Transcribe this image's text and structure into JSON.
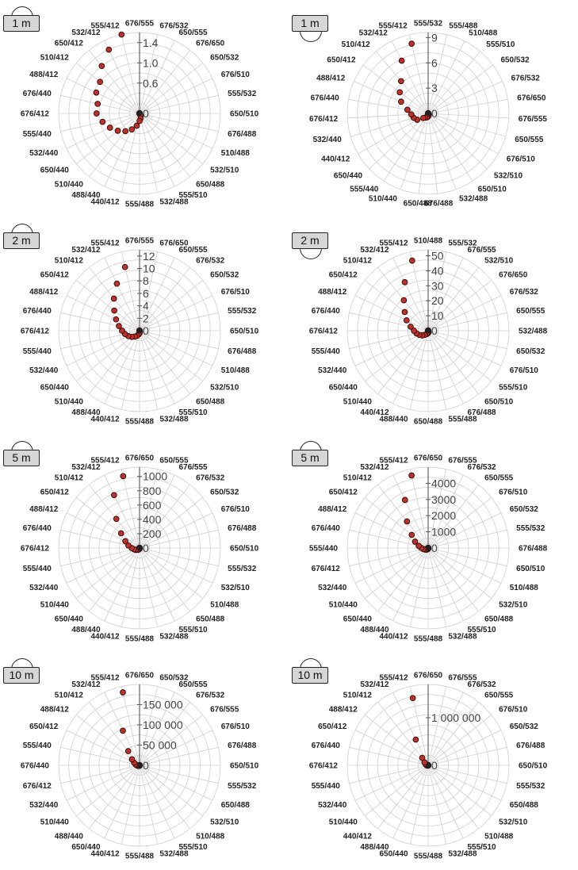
{
  "chart_data": [
    {
      "type": "radar",
      "badge": "1 m",
      "ticks": [
        "1.4",
        "1.0",
        "0.6",
        "0"
      ],
      "tick_values": [
        1.4,
        1.0,
        0.6,
        0
      ],
      "rmax": 1.6,
      "categories": [
        "676/555",
        "676/532",
        "650/555",
        "676/650",
        "650/532",
        "676/510",
        "555/532",
        "650/510",
        "676/488",
        "510/488",
        "532/510",
        "650/488",
        "555/510",
        "532/488",
        "555/488",
        "440/412",
        "488/440",
        "510/440",
        "650/440",
        "532/440",
        "555/440",
        "676/412",
        "676/440",
        "488/412",
        "510/412",
        "650/412",
        "532/412",
        "555/412"
      ],
      "values": [
        0,
        0,
        0,
        0,
        0,
        0,
        0,
        0,
        0,
        0,
        0,
        0,
        0.05,
        0.1,
        0.15,
        0.25,
        0.35,
        0.45,
        0.55,
        0.65,
        0.75,
        0.85,
        0.85,
        0.95,
        1.0,
        1.2,
        1.4,
        1.65
      ]
    },
    {
      "type": "radar",
      "badge": "1 m",
      "ticks": [
        "9",
        "6",
        "3",
        "0"
      ],
      "tick_values": [
        9,
        6,
        3,
        0
      ],
      "rmax": 9.6,
      "categories": [
        "555/532",
        "555/488",
        "510/488",
        "555/510",
        "650/532",
        "676/532",
        "676/650",
        "676/555",
        "650/555",
        "676/510",
        "532/510",
        "650/510",
        "532/488",
        "676/488",
        "650/488",
        "510/440",
        "555/440",
        "650/440",
        "440/412",
        "532/440",
        "676/412",
        "676/440",
        "488/412",
        "650/412",
        "510/412",
        "532/412",
        "555/412"
      ],
      "values": [
        0,
        0,
        0,
        0,
        0,
        0,
        0,
        0,
        0,
        0,
        0,
        0.1,
        0.2,
        0.3,
        0.4,
        0.5,
        0.6,
        0.8,
        1.5,
        1.8,
        2.0,
        2.5,
        3.5,
        4.2,
        5.0,
        7.0,
        8.5
      ]
    },
    {
      "type": "radar",
      "badge": "2 m",
      "ticks": [
        "12",
        "10",
        "8",
        "6",
        "4",
        "2",
        "0"
      ],
      "tick_values": [
        12,
        10,
        8,
        6,
        4,
        2,
        0
      ],
      "rmax": 13,
      "categories": [
        "676/555",
        "676/650",
        "650/555",
        "676/532",
        "650/532",
        "676/510",
        "555/532",
        "650/510",
        "676/488",
        "510/488",
        "532/510",
        "650/488",
        "555/510",
        "532/488",
        "555/488",
        "440/412",
        "488/440",
        "510/440",
        "650/440",
        "532/440",
        "555/440",
        "676/412",
        "676/440",
        "488/412",
        "650/412",
        "510/412",
        "532/412",
        "555/412"
      ],
      "values": [
        0,
        0,
        0,
        0,
        0,
        0,
        0,
        0,
        0,
        0,
        0,
        0,
        0.1,
        0.2,
        0.4,
        0.6,
        0.9,
        1.2,
        1.6,
        2.0,
        2.4,
        2.8,
        3.4,
        4.2,
        5.2,
        6.6,
        8.4,
        10.5
      ]
    },
    {
      "type": "radar",
      "badge": "2 m",
      "ticks": [
        "50",
        "40",
        "30",
        "20",
        "10",
        "0"
      ],
      "tick_values": [
        50,
        40,
        30,
        20,
        10,
        0
      ],
      "rmax": 54,
      "categories": [
        "510/488",
        "555/532",
        "676/555",
        "532/510",
        "676/650",
        "676/532",
        "650/555",
        "532/488",
        "650/532",
        "676/510",
        "555/510",
        "650/510",
        "676/488",
        "555/488",
        "650/488",
        "488/440",
        "440/412",
        "510/440",
        "650/440",
        "532/440",
        "555/440",
        "676/412",
        "676/440",
        "488/412",
        "650/412",
        "510/412",
        "532/412",
        "555/412"
      ],
      "values": [
        0,
        0,
        0,
        0,
        0,
        0,
        0,
        0,
        0,
        0,
        0,
        0,
        0.5,
        1.0,
        1.5,
        2.0,
        2.5,
        3.5,
        5.0,
        6.5,
        8.0,
        9.5,
        12,
        16,
        20,
        26,
        36,
        48
      ]
    },
    {
      "type": "radar",
      "badge": "5 m",
      "ticks": [
        "1000",
        "800",
        "600",
        "400",
        "200",
        "0"
      ],
      "tick_values": [
        1000,
        800,
        600,
        400,
        200,
        0
      ],
      "rmax": 1130,
      "categories": [
        "676/650",
        "650/555",
        "676/555",
        "676/532",
        "650/532",
        "676/510",
        "676/488",
        "650/510",
        "555/532",
        "532/510",
        "510/488",
        "650/488",
        "555/510",
        "532/488",
        "555/488",
        "440/412",
        "488/440",
        "650/440",
        "510/440",
        "532/440",
        "555/440",
        "676/412",
        "676/440",
        "488/412",
        "650/412",
        "510/412",
        "532/412",
        "555/412"
      ],
      "values": [
        0,
        0,
        0,
        0,
        0,
        0,
        0,
        0,
        0,
        0,
        0,
        0,
        0,
        5,
        10,
        15,
        20,
        30,
        40,
        60,
        80,
        110,
        160,
        220,
        330,
        520,
        820,
        1030
      ]
    },
    {
      "type": "radar",
      "badge": "5 m",
      "ticks": [
        "4000",
        "3000",
        "2000",
        "1000",
        "0"
      ],
      "tick_values": [
        4000,
        3000,
        2000,
        1000,
        0
      ],
      "rmax": 5000,
      "categories": [
        "676/650",
        "676/555",
        "676/532",
        "650/555",
        "676/510",
        "650/532",
        "555/532",
        "676/488",
        "650/510",
        "510/488",
        "532/510",
        "650/488",
        "555/510",
        "532/488",
        "555/488",
        "440/412",
        "488/440",
        "650/440",
        "510/440",
        "532/440",
        "676/412",
        "555/440",
        "676/440",
        "488/412",
        "650/412",
        "510/412",
        "532/412",
        "555/412"
      ],
      "values": [
        0,
        0,
        0,
        0,
        0,
        0,
        0,
        0,
        0,
        0,
        0,
        0,
        0,
        20,
        40,
        60,
        80,
        120,
        160,
        220,
        300,
        420,
        600,
        900,
        1300,
        2100,
        3300,
        4600
      ]
    },
    {
      "type": "radar",
      "badge": "10 m",
      "ticks": [
        "150 000",
        "100 000",
        "50 000",
        "0"
      ],
      "tick_values": [
        150000,
        100000,
        50000,
        0
      ],
      "rmax": 200000,
      "categories": [
        "676/650",
        "650/532",
        "650/555",
        "676/532",
        "676/555",
        "676/510",
        "676/488",
        "650/510",
        "555/532",
        "650/488",
        "532/510",
        "510/488",
        "555/510",
        "532/488",
        "555/488",
        "440/412",
        "650/440",
        "488/440",
        "510/440",
        "532/440",
        "676/412",
        "676/440",
        "555/440",
        "650/412",
        "488/412",
        "510/412",
        "532/412",
        "555/412"
      ],
      "values": [
        0,
        0,
        0,
        0,
        0,
        0,
        0,
        0,
        0,
        0,
        0,
        0,
        0,
        200,
        400,
        700,
        1000,
        1500,
        2200,
        3000,
        4500,
        7000,
        10000,
        15000,
        24000,
        45000,
        95000,
        185000
      ]
    },
    {
      "type": "radar",
      "badge": "10 m",
      "ticks": [
        "1 000 000",
        "0"
      ],
      "tick_values": [
        1000000,
        0
      ],
      "rmax": 1700000,
      "categories": [
        "676/650",
        "676/555",
        "676/532",
        "650/555",
        "676/510",
        "650/532",
        "676/488",
        "650/510",
        "555/532",
        "650/488",
        "532/510",
        "510/488",
        "555/510",
        "532/488",
        "555/488",
        "650/440",
        "488/440",
        "440/412",
        "510/440",
        "532/440",
        "555/440",
        "676/412",
        "676/440",
        "650/412",
        "488/412",
        "510/412",
        "532/412",
        "555/412"
      ],
      "values": [
        0,
        0,
        0,
        0,
        0,
        0,
        0,
        0,
        0,
        0,
        0,
        0,
        0,
        500,
        1000,
        2000,
        3000,
        5000,
        8000,
        12000,
        18000,
        25000,
        40000,
        60000,
        100000,
        200000,
        600000,
        1450000
      ]
    }
  ]
}
